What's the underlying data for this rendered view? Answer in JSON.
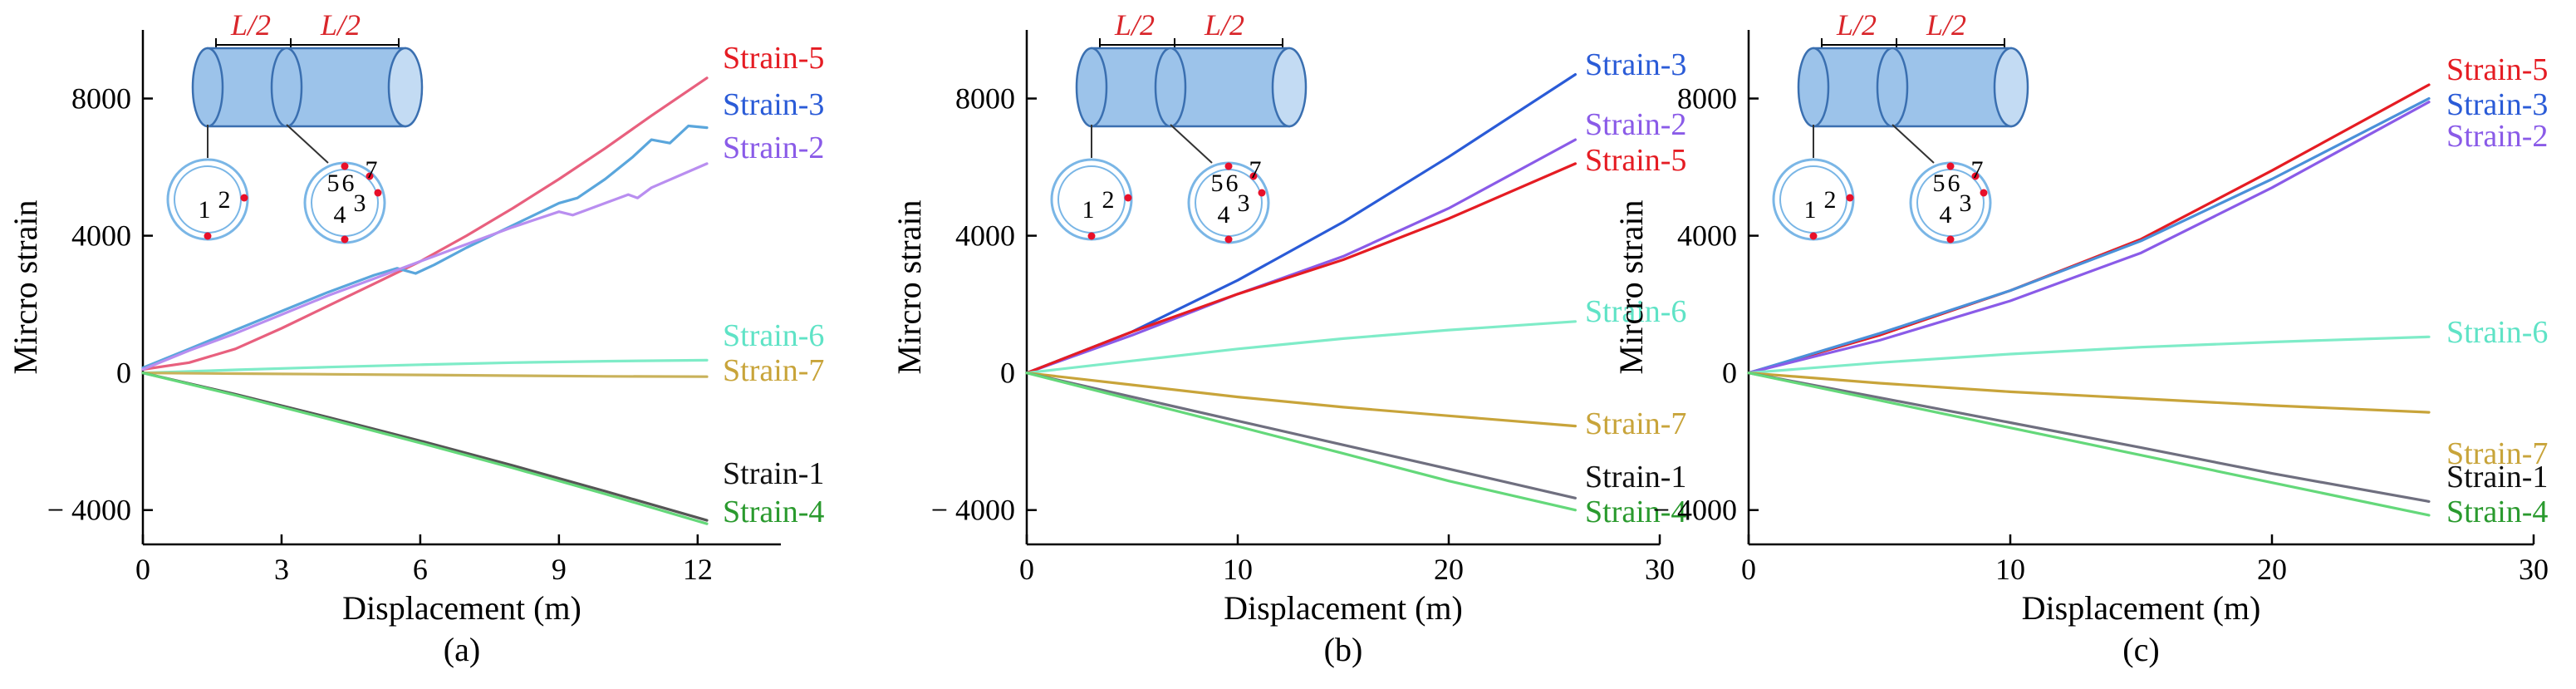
{
  "chart_data": [
    {
      "type": "line",
      "panel_label": "(a)",
      "xlabel": "Displacement (m)",
      "ylabel": "Mircro strain",
      "xlim": [
        0,
        13.8
      ],
      "ylim": [
        -5000,
        10000
      ],
      "xticks": [
        0,
        3,
        6,
        9,
        12
      ],
      "xtick_labels": [
        "0",
        "3",
        "6",
        "9",
        "12"
      ],
      "yticks": [
        -4000,
        0,
        4000,
        8000
      ],
      "ytick_labels": [
        "− 4000",
        "0",
        "4000",
        "8000"
      ],
      "grid": false,
      "legend_placement": "right",
      "inset": {
        "dim_labels": [
          "L/2",
          "L/2"
        ],
        "gauges_left": [
          "1",
          "2"
        ],
        "gauges_right": [
          "5",
          "6",
          "7",
          "3",
          "4"
        ]
      },
      "series": [
        {
          "name": "Strain-5",
          "color": "#e8607e",
          "label_color": "#e51c23",
          "x": [
            0,
            1,
            2,
            3,
            4,
            5,
            6,
            7,
            8,
            9,
            10,
            11,
            12.2
          ],
          "y": [
            100,
            300,
            700,
            1300,
            1950,
            2600,
            3250,
            4000,
            4800,
            5650,
            6550,
            7500,
            8600
          ]
        },
        {
          "name": "Strain-3",
          "color": "#5aa6dc",
          "label_color": "#2a5bd7",
          "x": [
            0,
            1,
            2,
            3,
            4,
            5,
            5.5,
            5.9,
            6.3,
            7,
            8,
            9,
            9.4,
            10,
            10.6,
            11,
            11.4,
            11.8,
            12.2
          ],
          "y": [
            150,
            700,
            1250,
            1800,
            2350,
            2850,
            3050,
            2900,
            3150,
            3650,
            4300,
            4950,
            5100,
            5650,
            6300,
            6800,
            6700,
            7200,
            7150
          ]
        },
        {
          "name": "Strain-2",
          "color": "#b98ef0",
          "label_color": "#8a5be8",
          "x": [
            0,
            1,
            2,
            3,
            4,
            5,
            6,
            7,
            8,
            9,
            9.3,
            10,
            10.5,
            10.7,
            11,
            12.2
          ],
          "y": [
            100,
            650,
            1150,
            1700,
            2250,
            2750,
            3250,
            3750,
            4250,
            4700,
            4600,
            4950,
            5200,
            5100,
            5400,
            6100
          ]
        },
        {
          "name": "Strain-6",
          "color": "#7fecc8",
          "label_color": "#5fe3c6",
          "x": [
            0,
            2,
            4,
            6,
            8,
            10,
            12.2
          ],
          "y": [
            0,
            90,
            170,
            240,
            300,
            340,
            370
          ]
        },
        {
          "name": "Strain-7",
          "color": "#c9b25a",
          "label_color": "#c8a43a",
          "x": [
            0,
            2,
            4,
            6,
            8,
            10,
            12.2
          ],
          "y": [
            0,
            -20,
            -40,
            -60,
            -80,
            -100,
            -110
          ]
        },
        {
          "name": "Strain-1",
          "color": "#555555",
          "label_color": "#111111",
          "x": [
            0,
            2,
            4,
            6,
            8,
            10,
            12.2
          ],
          "y": [
            0,
            -620,
            -1290,
            -1980,
            -2700,
            -3450,
            -4300
          ]
        },
        {
          "name": "Strain-4",
          "color": "#64d87a",
          "label_color": "#2a9a2e",
          "x": [
            0,
            2,
            4,
            6,
            8,
            10,
            12.2
          ],
          "y": [
            0,
            -650,
            -1340,
            -2040,
            -2770,
            -3530,
            -4400
          ]
        }
      ]
    },
    {
      "type": "line",
      "panel_label": "(b)",
      "xlabel": "Displacement (m)",
      "ylabel": "Mircro strain",
      "xlim": [
        0,
        30
      ],
      "ylim": [
        -5000,
        10000
      ],
      "xticks": [
        0,
        10,
        20,
        30
      ],
      "xtick_labels": [
        "0",
        "10",
        "20",
        "30"
      ],
      "yticks": [
        -4000,
        0,
        4000,
        8000
      ],
      "ytick_labels": [
        "− 4000",
        "0",
        "4000",
        "8000"
      ],
      "grid": false,
      "legend_placement": "right",
      "inset": {
        "dim_labels": [
          "L/2",
          "L/2"
        ],
        "gauges_left": [
          "1",
          "2"
        ],
        "gauges_right": [
          "5",
          "6",
          "7",
          "3",
          "4"
        ]
      },
      "series": [
        {
          "name": "Strain-3",
          "color": "#2a5bd7",
          "label_color": "#2a5bd7",
          "x": [
            0,
            5,
            10,
            15,
            20,
            26
          ],
          "y": [
            0,
            1200,
            2700,
            4400,
            6300,
            8700
          ]
        },
        {
          "name": "Strain-2",
          "color": "#8a5be8",
          "label_color": "#8a5be8",
          "x": [
            0,
            5,
            10,
            15,
            20,
            26
          ],
          "y": [
            0,
            1100,
            2300,
            3400,
            4800,
            6800
          ]
        },
        {
          "name": "Strain-5",
          "color": "#e51c23",
          "label_color": "#e51c23",
          "x": [
            0,
            5,
            10,
            15,
            20,
            26
          ],
          "y": [
            0,
            1200,
            2300,
            3300,
            4500,
            6100
          ]
        },
        {
          "name": "Strain-6",
          "color": "#7fecc8",
          "label_color": "#5fe3c6",
          "x": [
            0,
            5,
            10,
            15,
            20,
            26
          ],
          "y": [
            0,
            350,
            700,
            1000,
            1250,
            1500
          ]
        },
        {
          "name": "Strain-7",
          "color": "#c8a43a",
          "label_color": "#c8a43a",
          "x": [
            0,
            5,
            10,
            15,
            20,
            26
          ],
          "y": [
            0,
            -350,
            -700,
            -1000,
            -1250,
            -1550
          ]
        },
        {
          "name": "Strain-1",
          "color": "#6f6f7f",
          "label_color": "#111111",
          "x": [
            0,
            5,
            10,
            15,
            20,
            26
          ],
          "y": [
            0,
            -700,
            -1400,
            -2100,
            -2800,
            -3650
          ]
        },
        {
          "name": "Strain-4",
          "color": "#64d87a",
          "label_color": "#2a9a2e",
          "x": [
            0,
            5,
            10,
            15,
            20,
            26
          ],
          "y": [
            0,
            -780,
            -1560,
            -2350,
            -3150,
            -4000
          ]
        }
      ]
    },
    {
      "type": "line",
      "panel_label": "(c)",
      "xlabel": "Displacement (m)",
      "ylabel": "Mircro strain",
      "xlim": [
        0,
        30
      ],
      "ylim": [
        -5000,
        10000
      ],
      "xticks": [
        0,
        10,
        20,
        30
      ],
      "xtick_labels": [
        "0",
        "10",
        "20",
        "30"
      ],
      "yticks": [
        -4000,
        0,
        4000,
        8000
      ],
      "ytick_labels": [
        "− 4000",
        "0",
        "4000",
        "8000"
      ],
      "grid": false,
      "legend_placement": "right",
      "inset": {
        "dim_labels": [
          "L/2",
          "L/2"
        ],
        "gauges_left": [
          "1",
          "2"
        ],
        "gauges_right": [
          "5",
          "6",
          "7",
          "3",
          "4"
        ]
      },
      "series": [
        {
          "name": "Strain-5",
          "color": "#e51c23",
          "label_color": "#e51c23",
          "x": [
            0,
            5,
            10,
            15,
            20,
            26
          ],
          "y": [
            0,
            1100,
            2400,
            3900,
            5900,
            8400
          ]
        },
        {
          "name": "Strain-3",
          "color": "#4a90d9",
          "label_color": "#2a5bd7",
          "x": [
            0,
            5,
            10,
            15,
            20,
            26
          ],
          "y": [
            0,
            1150,
            2400,
            3850,
            5650,
            8000
          ]
        },
        {
          "name": "Strain-2",
          "color": "#8a5be8",
          "label_color": "#8a5be8",
          "x": [
            0,
            5,
            10,
            15,
            20,
            26
          ],
          "y": [
            0,
            950,
            2100,
            3500,
            5400,
            7900
          ]
        },
        {
          "name": "Strain-6",
          "color": "#7fecc8",
          "label_color": "#5fe3c6",
          "x": [
            0,
            5,
            10,
            15,
            20,
            26
          ],
          "y": [
            0,
            300,
            550,
            750,
            900,
            1050
          ]
        },
        {
          "name": "Strain-7",
          "color": "#c8a43a",
          "label_color": "#c8a43a",
          "x": [
            0,
            5,
            10,
            15,
            20,
            26
          ],
          "y": [
            0,
            -300,
            -550,
            -750,
            -950,
            -1150
          ]
        },
        {
          "name": "Strain-1",
          "color": "#6f6f7f",
          "label_color": "#111111",
          "x": [
            0,
            5,
            10,
            15,
            20,
            26
          ],
          "y": [
            0,
            -720,
            -1450,
            -2180,
            -2930,
            -3750
          ]
        },
        {
          "name": "Strain-4",
          "color": "#64d87a",
          "label_color": "#2a9a2e",
          "x": [
            0,
            5,
            10,
            15,
            20,
            26
          ],
          "y": [
            0,
            -800,
            -1600,
            -2400,
            -3200,
            -4150
          ]
        }
      ]
    }
  ]
}
